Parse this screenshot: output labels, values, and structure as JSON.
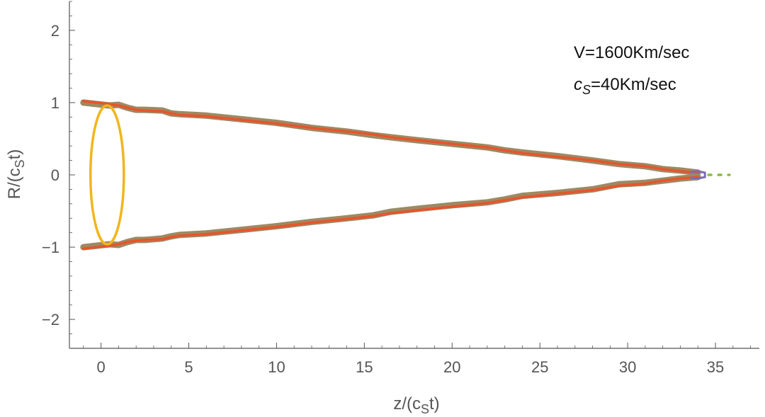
{
  "chart_data": {
    "type": "line",
    "xlim": [
      -1.8,
      37.5
    ],
    "ylim": [
      -2.4,
      2.4
    ],
    "x_ticks": [
      0,
      5,
      10,
      15,
      20,
      25,
      30,
      35
    ],
    "y_ticks": [
      2,
      1,
      0,
      -1,
      -2
    ],
    "x_tick_labels": [
      "0",
      "5",
      "10",
      "15",
      "20",
      "25",
      "30",
      "35"
    ],
    "y_tick_labels": [
      "2",
      "1",
      "0",
      "−1",
      "−2"
    ],
    "xlabel": "z/(c",
    "xlabel_sub": "S",
    "xlabel_tail": "t)",
    "ylabel": "R/(c",
    "ylabel_sub": "S",
    "ylabel_tail": "t)",
    "annotations": [
      {
        "text": "V=1600Km/sec"
      },
      {
        "text": "c",
        "sub": "S",
        "tail": "=40Km/sec"
      }
    ],
    "colors": {
      "shell": "#9c8a63",
      "front": "#e8542c",
      "ellipse": "#f2b51c",
      "tip": "#7b6cbd",
      "wake": "#8cba43",
      "axis": "#555555"
    },
    "series": [
      {
        "x": [
          -1.0,
          0.5,
          1.0,
          1.5,
          2.0,
          2.5,
          3.5,
          4.0,
          4.5,
          6.0,
          8.0,
          10.0,
          12.0,
          14.0,
          15.5,
          16.5,
          18.0,
          20.0,
          22.0,
          23.0,
          24.0,
          26.0,
          28.0,
          29.5,
          31.0,
          32.0,
          33.0,
          34.0
        ],
        "y": [
          1.0,
          0.96,
          0.97,
          0.93,
          0.9,
          0.9,
          0.89,
          0.85,
          0.84,
          0.82,
          0.77,
          0.72,
          0.65,
          0.6,
          0.55,
          0.52,
          0.48,
          0.43,
          0.38,
          0.34,
          0.31,
          0.26,
          0.2,
          0.15,
          0.12,
          0.08,
          0.06,
          0.03
        ]
      },
      {
        "x": [
          -1.0,
          0.5,
          1.0,
          1.5,
          2.0,
          2.5,
          3.5,
          4.0,
          4.5,
          6.0,
          8.0,
          10.0,
          12.0,
          14.0,
          15.5,
          16.5,
          18.0,
          20.0,
          22.0,
          23.0,
          24.0,
          26.0,
          28.0,
          29.5,
          31.0,
          32.0,
          33.0,
          34.0
        ],
        "y": [
          -1.0,
          -0.96,
          -0.97,
          -0.93,
          -0.9,
          -0.9,
          -0.88,
          -0.85,
          -0.83,
          -0.81,
          -0.76,
          -0.71,
          -0.65,
          -0.6,
          -0.56,
          -0.51,
          -0.47,
          -0.42,
          -0.38,
          -0.34,
          -0.29,
          -0.25,
          -0.2,
          -0.13,
          -0.11,
          -0.08,
          -0.05,
          -0.03
        ]
      },
      {
        "x": [
          -1.0,
          0.5,
          1.0,
          1.5,
          2.0,
          2.5,
          3.5,
          4.0,
          4.5,
          6.0,
          8.0,
          10.0,
          12.0,
          14.0,
          15.5,
          16.5,
          18.0,
          20.0,
          22.0,
          23.0,
          24.0,
          26.0,
          28.0,
          29.5,
          31.0,
          32.0,
          33.0,
          34.0
        ],
        "y": [
          1.02,
          0.98,
          0.96,
          0.93,
          0.9,
          0.89,
          0.88,
          0.85,
          0.83,
          0.81,
          0.76,
          0.71,
          0.65,
          0.6,
          0.56,
          0.52,
          0.48,
          0.43,
          0.38,
          0.34,
          0.3,
          0.25,
          0.2,
          0.15,
          0.12,
          0.08,
          0.05,
          0.03
        ]
      },
      {
        "x": [
          -1.0,
          0.5,
          1.0,
          1.5,
          2.0,
          2.5,
          3.5,
          4.0,
          4.5,
          6.0,
          8.0,
          10.0,
          12.0,
          14.0,
          15.5,
          16.5,
          18.0,
          20.0,
          22.0,
          23.0,
          24.0,
          26.0,
          28.0,
          29.5,
          31.0,
          32.0,
          33.0,
          34.0
        ],
        "y": [
          -1.02,
          -0.98,
          -0.96,
          -0.93,
          -0.91,
          -0.9,
          -0.89,
          -0.86,
          -0.84,
          -0.82,
          -0.77,
          -0.72,
          -0.66,
          -0.61,
          -0.57,
          -0.53,
          -0.49,
          -0.44,
          -0.39,
          -0.35,
          -0.31,
          -0.26,
          -0.21,
          -0.15,
          -0.12,
          -0.08,
          -0.05,
          -0.03
        ]
      },
      {
        "type": "ellipse",
        "center": [
          0.35,
          0
        ],
        "rx": 0.95,
        "ry": 0.96
      },
      {
        "x": [
          33.6,
          34.0,
          34.4,
          34.4,
          34.0,
          33.6
        ],
        "y": [
          0.04,
          0.05,
          0.03,
          -0.03,
          -0.05,
          -0.04
        ]
      },
      {
        "x": [
          34.6,
          35.0,
          35.4,
          35.8
        ],
        "y": [
          0.0,
          0.0,
          0.0,
          0.0
        ]
      }
    ]
  }
}
